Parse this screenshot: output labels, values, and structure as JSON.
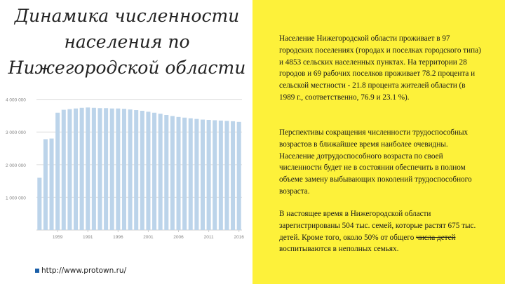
{
  "slide": {
    "title": "Динамика численности населения по Нижегородской области",
    "paragraph1": "Население Нижегородской области проживает в 97 городских поселениях (городах и поселках городского типа) и 4853 сельских населенных пунктах. На территории 28 городов и 69 рабочих поселков проживает 78.2 процента и сельской местности - 21.8 процента жителей области (в 1989 г., соответственно, 76.9 и 23.1 %).",
    "paragraph2": "Перспективы сокращения численности трудоспособных возрастов в ближайшее время наиболее очевидны. Население дотрудоспособного возраста по своей численности будет не в состоянии обеспечить в полном объеме замену выбывающих поколений трудоспособного возраста.",
    "paragraph3_before": "В настоящее время в Нижегородской области зарегистрированы 504 тыс. семей, которые растят 675 тыс. детей. Кроме того, около 50% от общего ",
    "paragraph3_strike": "числа детей",
    "paragraph3_after": " воспитываются в неполных семьях.",
    "footer_url": "http://www.protown.ru/",
    "footer_icon": "link-icon",
    "colors": {
      "accent": "#fdf13a",
      "bar": "#bcd4ea"
    }
  },
  "chart_data": {
    "type": "bar",
    "x": [
      1897,
      1926,
      1939,
      1959,
      1970,
      1979,
      1989,
      1990,
      1991,
      1992,
      1993,
      1994,
      1995,
      1996,
      1997,
      1998,
      1999,
      2000,
      2001,
      2002,
      2003,
      2004,
      2005,
      2006,
      2007,
      2008,
      2009,
      2010,
      2011,
      2012,
      2013,
      2014,
      2015,
      2016
    ],
    "values": [
      1600000,
      2780000,
      2800000,
      3590000,
      3680000,
      3700000,
      3720000,
      3740000,
      3750000,
      3740000,
      3730000,
      3730000,
      3720000,
      3720000,
      3710000,
      3690000,
      3670000,
      3650000,
      3620000,
      3590000,
      3560000,
      3520000,
      3490000,
      3460000,
      3440000,
      3420000,
      3400000,
      3380000,
      3370000,
      3360000,
      3350000,
      3340000,
      3330000,
      3310000
    ],
    "xticks": [
      "1959",
      "1991",
      "1996",
      "2001",
      "2006",
      "2011",
      "2016"
    ],
    "yticks": [
      "1 000 000",
      "2 000 000",
      "3 000 000",
      "4 000 000"
    ],
    "ylim": [
      0,
      4100000
    ],
    "grid": true
  }
}
